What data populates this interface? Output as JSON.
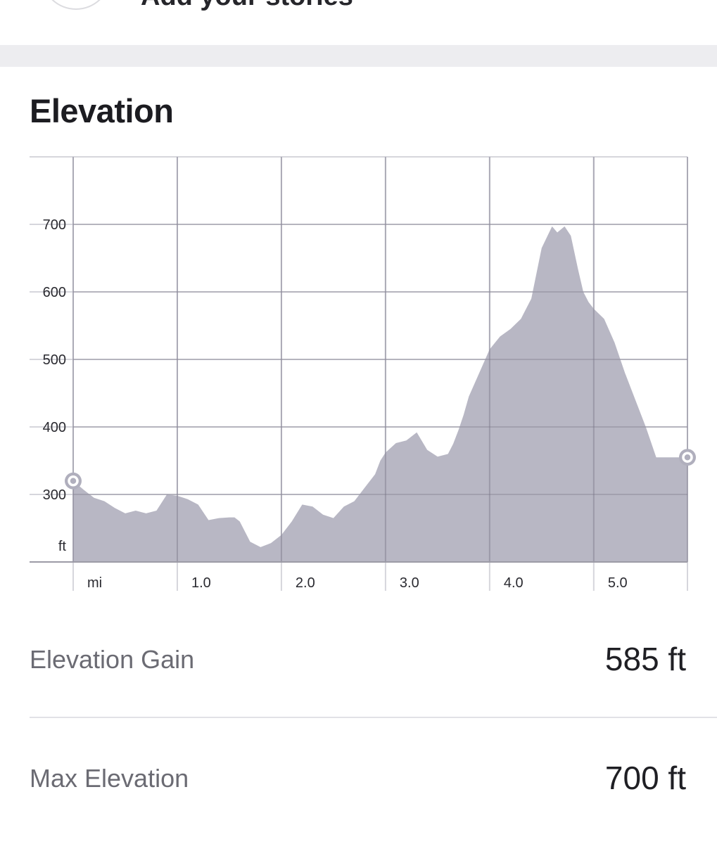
{
  "header": {
    "title_partial": "Add your stories"
  },
  "section": {
    "title": "Elevation"
  },
  "chart_data": {
    "type": "area",
    "title": "Elevation",
    "xlabel": "mi",
    "ylabel": "ft",
    "xlim": [
      0,
      5.9
    ],
    "ylim": [
      200,
      800
    ],
    "grid": true,
    "x_ticks": [
      1.0,
      2.0,
      3.0,
      4.0,
      5.0
    ],
    "x_tick_labels": [
      "1.0",
      "2.0",
      "3.0",
      "4.0",
      "5.0"
    ],
    "y_ticks": [
      300,
      400,
      500,
      600,
      700
    ],
    "y_tick_labels": [
      "300",
      "400",
      "500",
      "600",
      "700"
    ],
    "x_unit_label": "mi",
    "y_unit_label": "ft",
    "fill_color": "#b8b7c4",
    "marker_color": "#b0afbd",
    "series": [
      {
        "x": [
          0.0,
          0.1,
          0.2,
          0.3,
          0.4,
          0.5,
          0.6,
          0.7,
          0.8,
          0.9,
          1.0,
          1.1,
          1.2,
          1.3,
          1.4,
          1.5,
          1.55,
          1.6,
          1.7,
          1.8,
          1.9,
          2.0,
          2.1,
          2.2,
          2.3,
          2.4,
          2.5,
          2.6,
          2.7,
          2.8,
          2.9,
          2.95,
          3.0,
          3.1,
          3.2,
          3.3,
          3.4,
          3.5,
          3.6,
          3.65,
          3.7,
          3.75,
          3.8,
          3.9,
          4.0,
          4.1,
          4.2,
          4.3,
          4.4,
          4.5,
          4.6,
          4.65,
          4.72,
          4.78,
          4.85,
          4.9,
          4.95,
          5.0,
          5.1,
          5.2,
          5.3,
          5.4,
          5.5,
          5.6,
          5.7,
          5.9
        ],
        "y": [
          320,
          307,
          295,
          290,
          280,
          272,
          276,
          272,
          276,
          300,
          298,
          293,
          285,
          262,
          265,
          266,
          266,
          260,
          230,
          222,
          228,
          240,
          260,
          285,
          282,
          270,
          265,
          282,
          290,
          310,
          330,
          350,
          362,
          376,
          380,
          392,
          366,
          356,
          360,
          375,
          395,
          418,
          445,
          480,
          515,
          534,
          545,
          560,
          590,
          665,
          697,
          688,
          697,
          683,
          633,
          600,
          585,
          575,
          560,
          525,
          480,
          440,
          400,
          355,
          355,
          355
        ]
      }
    ]
  },
  "stats": {
    "gain_label": "Elevation Gain",
    "gain_value": "585 ft",
    "max_label": "Max Elevation",
    "max_value": "700 ft"
  }
}
